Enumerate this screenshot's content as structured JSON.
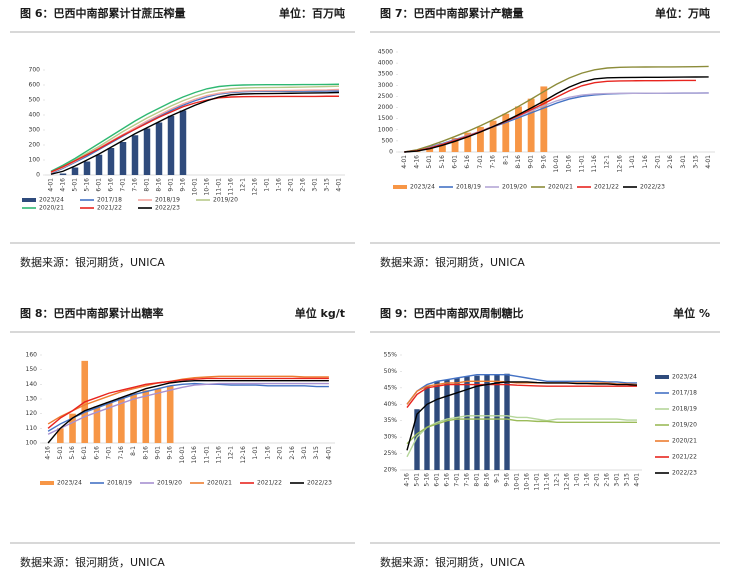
{
  "chart_data": [
    {
      "type": "bar",
      "title": "图 6：巴西中南部累计甘蔗压榨量",
      "unit": "单位：百万吨",
      "source": "数据来源：银河期货，UNICA",
      "legend": "bottom",
      "categories": [
        "4-01",
        "4-16",
        "5-01",
        "5-16",
        "6-01",
        "6-16",
        "7-01",
        "7-16",
        "8-01",
        "8-16",
        "9-01",
        "9-16",
        "10-01",
        "10-16",
        "11-01",
        "11-16",
        "12-1",
        "12-16",
        "1-01",
        "1-16",
        "2-01",
        "2-16",
        "3-01",
        "3-15",
        "4-01"
      ],
      "ylim": [
        0,
        700
      ],
      "yticks": [
        0,
        100,
        200,
        300,
        400,
        500,
        600,
        700
      ],
      "series": [
        {
          "name": "2023/24",
          "type": "bar",
          "color": "#2f4b7c",
          "values": [
            null,
            10,
            50,
            90,
            135,
            180,
            220,
            265,
            310,
            350,
            395,
            430,
            null,
            null,
            null,
            null,
            null,
            null,
            null,
            null,
            null,
            null,
            null,
            null,
            null
          ]
        },
        {
          "name": "2017/18",
          "type": "line",
          "color": "#4472c4",
          "values": [
            10,
            45,
            85,
            125,
            170,
            215,
            260,
            305,
            350,
            390,
            430,
            465,
            495,
            520,
            540,
            550,
            555,
            557,
            558,
            558,
            558,
            559,
            559,
            560,
            560
          ]
        },
        {
          "name": "2018/19",
          "type": "line",
          "color": "#f4a6a0",
          "values": [
            15,
            50,
            90,
            135,
            180,
            225,
            270,
            315,
            360,
            400,
            440,
            475,
            505,
            530,
            545,
            555,
            560,
            562,
            563,
            563,
            564,
            565,
            566,
            567,
            570
          ]
        },
        {
          "name": "2019/20",
          "type": "line",
          "color": "#b8c98a",
          "values": [
            20,
            55,
            100,
            145,
            190,
            240,
            290,
            335,
            380,
            420,
            460,
            495,
            525,
            550,
            565,
            575,
            580,
            582,
            583,
            584,
            585,
            586,
            588,
            590,
            592
          ]
        },
        {
          "name": "2020/21",
          "type": "line",
          "color": "#2eb872",
          "values": [
            25,
            65,
            110,
            160,
            210,
            260,
            310,
            360,
            405,
            445,
            485,
            520,
            550,
            575,
            590,
            597,
            600,
            601,
            602,
            602,
            602,
            603,
            603,
            604,
            605
          ]
        },
        {
          "name": "2021/22",
          "type": "line",
          "color": "#e8251f",
          "values": [
            20,
            55,
            95,
            135,
            175,
            220,
            265,
            305,
            345,
            385,
            420,
            455,
            480,
            500,
            515,
            520,
            522,
            523,
            523,
            524,
            524,
            524,
            524,
            525,
            525
          ]
        },
        {
          "name": "2022/23",
          "type": "line",
          "color": "#000000",
          "values": [
            5,
            25,
            60,
            100,
            140,
            185,
            230,
            275,
            315,
            355,
            395,
            430,
            465,
            495,
            520,
            535,
            540,
            542,
            543,
            544,
            545,
            546,
            547,
            548,
            550
          ]
        }
      ]
    },
    {
      "type": "bar",
      "title": "图 7：巴西中南部累计产糖量",
      "unit": "单位：万吨",
      "source": "数据来源：银河期货，UNICA",
      "legend": "bottom",
      "categories": [
        "4-01",
        "4-16",
        "5-01",
        "5-16",
        "6-01",
        "6-16",
        "7-01",
        "7-16",
        "8-1",
        "8-16",
        "9-01",
        "9-16",
        "10-01",
        "10-16",
        "11-01",
        "11-16",
        "12-1",
        "12-16",
        "1-01",
        "1-16",
        "2-01",
        "2-16",
        "3-01",
        "3-15",
        "4-01"
      ],
      "ylim": [
        0,
        4500
      ],
      "yticks": [
        0,
        500,
        1000,
        1500,
        2000,
        2500,
        3000,
        3500,
        4000,
        4500
      ],
      "series": [
        {
          "name": "2023/24",
          "type": "bar",
          "color": "#f79646",
          "values": [
            null,
            30,
            180,
            400,
            630,
            870,
            1130,
            1410,
            1720,
            2050,
            2400,
            2950,
            null,
            null,
            null,
            null,
            null,
            null,
            null,
            null,
            null,
            null,
            null,
            null,
            null
          ]
        },
        {
          "name": "2018/19",
          "type": "line",
          "color": "#4472c4",
          "values": [
            0,
            80,
            220,
            380,
            560,
            740,
            930,
            1130,
            1330,
            1540,
            1760,
            1980,
            2200,
            2380,
            2500,
            2570,
            2610,
            2630,
            2640,
            2640,
            2645,
            2645,
            2650,
            2650,
            2660
          ]
        },
        {
          "name": "2019/20",
          "type": "line",
          "color": "#b4a7d6",
          "values": [
            0,
            70,
            200,
            360,
            540,
            730,
            940,
            1160,
            1380,
            1610,
            1850,
            2080,
            2300,
            2460,
            2560,
            2610,
            2630,
            2640,
            2640,
            2645,
            2645,
            2650,
            2650,
            2650,
            2655
          ]
        },
        {
          "name": "2020/21",
          "type": "line",
          "color": "#8c8c3a",
          "values": [
            0,
            100,
            280,
            480,
            700,
            930,
            1180,
            1450,
            1740,
            2050,
            2380,
            2720,
            3050,
            3330,
            3550,
            3700,
            3780,
            3810,
            3820,
            3825,
            3830,
            3830,
            3835,
            3840,
            3850
          ]
        },
        {
          "name": "2021/22",
          "type": "line",
          "color": "#e8251f",
          "values": [
            0,
            60,
            180,
            340,
            520,
            710,
            920,
            1140,
            1380,
            1630,
            1900,
            2180,
            2470,
            2750,
            2980,
            3120,
            3180,
            3200,
            3205,
            3210,
            3210,
            3215,
            3220,
            3220,
            null
          ]
        },
        {
          "name": "2022/23",
          "type": "line",
          "color": "#000000",
          "values": [
            0,
            40,
            150,
            300,
            480,
            680,
            900,
            1140,
            1400,
            1680,
            1980,
            2290,
            2620,
            2920,
            3150,
            3290,
            3340,
            3350,
            3355,
            3360,
            3360,
            3365,
            3370,
            3375,
            3380
          ]
        }
      ]
    },
    {
      "type": "bar",
      "title": "图 8：巴西中南部累计出糖率",
      "unit": "单位 kg/t",
      "source": "数据来源：银河期货，UNICA",
      "legend": "bottom",
      "categories": [
        "4-16",
        "5-01",
        "5-16",
        "6-01",
        "6-16",
        "7-01",
        "7-16",
        "8-1",
        "8-16",
        "9-01",
        "9-16",
        "10-01",
        "10-16",
        "11-01",
        "11-16",
        "12-1",
        "12-16",
        "1-01",
        "1-16",
        "2-01",
        "2-16",
        "3-01",
        "3-15",
        "4-01"
      ],
      "ylim": [
        100,
        160
      ],
      "yticks": [
        100,
        110,
        120,
        130,
        140,
        150,
        160
      ],
      "series": [
        {
          "name": "2023/24",
          "type": "bar",
          "color": "#f79646",
          "values": [
            null,
            110,
            120,
            156,
            125,
            128,
            131,
            134,
            136,
            137,
            139,
            null,
            null,
            null,
            null,
            null,
            null,
            null,
            null,
            null,
            null,
            null,
            null,
            null
          ]
        },
        {
          "name": "2018/19",
          "type": "line",
          "color": "#4472c4",
          "values": [
            108,
            113,
            117,
            121,
            124,
            127,
            130,
            133,
            135,
            137,
            139,
            140,
            140.5,
            140,
            140,
            139.5,
            139.5,
            139.5,
            139,
            139,
            139,
            139,
            138.5,
            138.5
          ]
        },
        {
          "name": "2019/20",
          "type": "line",
          "color": "#a68fd0",
          "values": [
            106,
            110,
            114,
            118,
            121,
            124,
            127,
            130,
            132,
            134,
            136,
            138,
            139.5,
            140,
            140.5,
            140.5,
            140.5,
            140.5,
            140.5,
            140.5,
            140.5,
            140.5,
            140.5,
            140.5
          ]
        },
        {
          "name": "2020/21",
          "type": "line",
          "color": "#ed7d31",
          "values": [
            113,
            118,
            122,
            126,
            129,
            132,
            135,
            137,
            139,
            141,
            142,
            143.5,
            144.5,
            145,
            145.5,
            145.5,
            145.5,
            145.5,
            145.5,
            145.5,
            145.5,
            145,
            145,
            145
          ]
        },
        {
          "name": "2021/22",
          "type": "line",
          "color": "#e8251f",
          "values": [
            110,
            117,
            122,
            128,
            131,
            134,
            136,
            138,
            140,
            141,
            142,
            143,
            143.5,
            144,
            144,
            144,
            144,
            144,
            144,
            144,
            144,
            144,
            144,
            144
          ]
        },
        {
          "name": "2022/23",
          "type": "line",
          "color": "#000000",
          "values": [
            100,
            110,
            117,
            122,
            125,
            128,
            131,
            134,
            137,
            139,
            141,
            142,
            142.5,
            142.5,
            142.5,
            142.5,
            142.5,
            142.5,
            142.5,
            142.5,
            142.5,
            142.5,
            142.5,
            142.5
          ]
        }
      ]
    },
    {
      "type": "bar",
      "title": "图 9：巴西中南部双周制糖比",
      "unit": "单位 %",
      "source": "数据来源：银河期货，UNICA",
      "legend": "right",
      "categories": [
        "4-16",
        "5-01",
        "5-16",
        "6-01",
        "6-16",
        "7-01",
        "7-16",
        "8-01",
        "8-16",
        "9-1",
        "9-16",
        "10-01",
        "10-16",
        "11-01",
        "11-16",
        "12-1",
        "12-16",
        "1-01",
        "1-16",
        "2-01",
        "2-16",
        "3-01",
        "3-15",
        "4-01"
      ],
      "ylim": [
        20,
        55
      ],
      "yticks": [
        {
          "value": 20,
          "label": "20%"
        },
        {
          "value": 25,
          "label": "25%"
        },
        {
          "value": 30,
          "label": "30%"
        },
        {
          "value": 35,
          "label": "35%"
        },
        {
          "value": 40,
          "label": "40%"
        },
        {
          "value": 45,
          "label": "45%"
        },
        {
          "value": 50,
          "label": "50%"
        },
        {
          "value": 55,
          "label": "55%"
        }
      ],
      "series": [
        {
          "name": "2023/24",
          "type": "bar",
          "color": "#2f4b7c",
          "values": [
            null,
            38.5,
            45.5,
            47,
            47.5,
            48,
            48.5,
            48.7,
            49,
            49,
            49.3,
            null,
            null,
            null,
            null,
            null,
            null,
            null,
            null,
            null,
            null,
            null,
            null,
            null
          ]
        },
        {
          "name": "2017/18",
          "type": "line",
          "color": "#4472c4",
          "values": [
            40,
            44,
            46,
            47,
            47.5,
            48,
            48.5,
            49,
            49,
            49,
            49,
            48.5,
            48,
            47.5,
            47,
            47,
            47,
            47,
            47,
            47,
            46.8,
            46.8,
            46.5,
            46.5
          ]
        },
        {
          "name": "2018/19",
          "type": "line",
          "color": "#b5d69a",
          "values": [
            24,
            30,
            33,
            34.5,
            35.5,
            36,
            36.5,
            36.5,
            36.5,
            36.5,
            36.5,
            36,
            36,
            35.5,
            35,
            35.5,
            35.5,
            35.5,
            35.5,
            35.5,
            35.5,
            35.5,
            35.2,
            35.2
          ]
        },
        {
          "name": "2019/20",
          "type": "line",
          "color": "#9bbb59",
          "values": [
            28,
            31,
            33,
            34,
            35,
            35.5,
            35.5,
            35.5,
            35.5,
            35.5,
            35.5,
            35,
            35,
            34.8,
            34.8,
            34.5,
            34.5,
            34.5,
            34.5,
            34.5,
            34.5,
            34.5,
            34.5,
            34.5
          ]
        },
        {
          "name": "2020/21",
          "type": "line",
          "color": "#ed7d31",
          "values": [
            40,
            44,
            45.5,
            46,
            46.5,
            46.5,
            47,
            47,
            47,
            47,
            46.8,
            46.5,
            46.5,
            46.5,
            46.5,
            46.5,
            46.5,
            46.5,
            46.5,
            46.5,
            46.5,
            46.2,
            46.2,
            46
          ]
        },
        {
          "name": "2021/22",
          "type": "line",
          "color": "#e8251f",
          "values": [
            39,
            43,
            45,
            45.5,
            46,
            46,
            46,
            46,
            46,
            46,
            46,
            45.8,
            45.7,
            45.6,
            45.5,
            45.5,
            45.5,
            45.5,
            45.5,
            45.5,
            45.5,
            45.5,
            45.5,
            45.5
          ]
        },
        {
          "name": "2022/23",
          "type": "line",
          "color": "#000000",
          "values": [
            26,
            37,
            40,
            41.5,
            42.5,
            43.5,
            44.5,
            45.5,
            46,
            46.5,
            46.8,
            46.8,
            46.8,
            46.6,
            46.5,
            46.5,
            46.5,
            46.3,
            46.3,
            46.2,
            46.2,
            46,
            46,
            45.8
          ]
        }
      ]
    }
  ]
}
